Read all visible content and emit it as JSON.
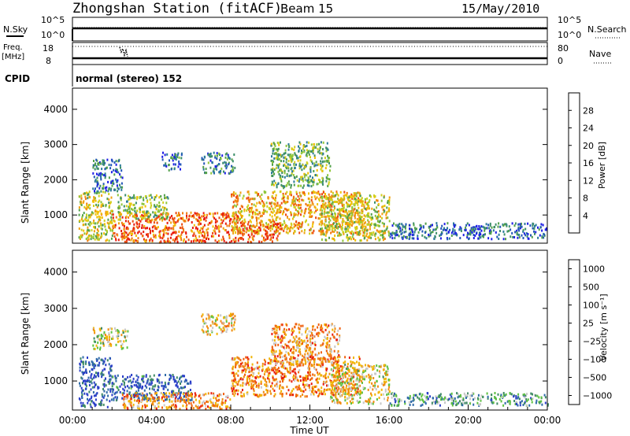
{
  "header": {
    "station": "Zhongshan Station (fitACF)",
    "beam": "Beam 15",
    "date": "15/May/2010"
  },
  "top_panels": {
    "nsky_label": "N.Sky",
    "nsky_ticks": [
      "10^5",
      "10^0"
    ],
    "nsearch_label": "N.Search",
    "nsearch_ticks": [
      "10^5",
      "10^0"
    ],
    "freq_label": "Freq.",
    "freq_unit": "[MHz]",
    "freq_ticks": [
      "18",
      "8"
    ],
    "nave_label": "Nave",
    "nave_ticks": [
      "80",
      "0"
    ],
    "cpid_label": "CPID",
    "cpid_text": "normal (stereo) 152"
  },
  "chart_data": [
    {
      "type": "heatmap",
      "name": "power",
      "ylabel": "Slant Range [km]",
      "xlabel": "",
      "yticks": [
        "1000",
        "2000",
        "3000",
        "4000"
      ],
      "ylim": [
        200,
        4600
      ],
      "xlim": [
        0,
        24
      ],
      "colorbar_label": "Power [dB]",
      "colorbar_ticks": [
        "4",
        "8",
        "12",
        "16",
        "20",
        "24",
        "28"
      ],
      "colorbar_colors": [
        "#1e1ee6",
        "#2256b8",
        "#2b7a9a",
        "#3d8f6a",
        "#52a04a",
        "#8fc63a",
        "#cfd01e",
        "#f0c000",
        "#f0a010",
        "#f07a10",
        "#ec4a10",
        "#e81a0c"
      ],
      "regions": [
        {
          "t0": 0.3,
          "t1": 2.0,
          "r0": 300,
          "r1": 1700,
          "level": 0.55
        },
        {
          "t0": 1.0,
          "t1": 2.5,
          "r0": 1700,
          "r1": 2600,
          "level": 0.2
        },
        {
          "t0": 2.0,
          "t1": 8.5,
          "r0": 250,
          "r1": 1100,
          "level": 0.85
        },
        {
          "t0": 2.2,
          "t1": 4.8,
          "r0": 900,
          "r1": 1600,
          "level": 0.45
        },
        {
          "t0": 4.5,
          "t1": 5.5,
          "r0": 2300,
          "r1": 2800,
          "level": 0.2
        },
        {
          "t0": 6.5,
          "t1": 8.2,
          "r0": 2200,
          "r1": 2800,
          "level": 0.25
        },
        {
          "t0": 8.0,
          "t1": 15.0,
          "r0": 500,
          "r1": 1700,
          "level": 0.68
        },
        {
          "t0": 8.5,
          "t1": 10.5,
          "r0": 250,
          "r1": 800,
          "level": 0.9
        },
        {
          "t0": 10.0,
          "t1": 13.0,
          "r0": 1800,
          "r1": 3100,
          "level": 0.4
        },
        {
          "t0": 12.5,
          "t1": 16.0,
          "r0": 300,
          "r1": 1600,
          "level": 0.55
        },
        {
          "t0": 16.0,
          "t1": 24.0,
          "r0": 350,
          "r1": 800,
          "level": 0.18
        }
      ]
    },
    {
      "type": "heatmap",
      "name": "velocity",
      "ylabel": "Slant Range [km]",
      "xlabel": "Time UT",
      "yticks": [
        "1000",
        "2000",
        "3000",
        "4000"
      ],
      "ylim": [
        200,
        4600
      ],
      "xlim": [
        0,
        24
      ],
      "xticks": [
        "00:00",
        "04:00",
        "08:00",
        "12:00",
        "16:00",
        "20:00",
        "00:00"
      ],
      "colorbar_label": "Velocity [m s⁻¹]",
      "colorbar_ticks": [
        "1000",
        "500",
        "100",
        "25",
        "−25",
        "−100",
        "−500",
        "−1000"
      ],
      "colorbar_colors": [
        "#2a3ec8",
        "#2f6aa8",
        "#3e8a64",
        "#5cc040",
        "#c8c8c8",
        "#f0b400",
        "#f08c10",
        "#f06010",
        "#e81a0c"
      ],
      "regions": [
        {
          "t0": 0.3,
          "t1": 2.0,
          "r0": 300,
          "r1": 1700,
          "level": 0.1
        },
        {
          "t0": 1.0,
          "t1": 2.8,
          "r0": 1900,
          "r1": 2500,
          "level": 0.5
        },
        {
          "t0": 2.0,
          "t1": 6.0,
          "r0": 500,
          "r1": 1200,
          "level": 0.12
        },
        {
          "t0": 2.5,
          "t1": 8.0,
          "r0": 250,
          "r1": 700,
          "level": 0.72
        },
        {
          "t0": 6.5,
          "t1": 8.2,
          "r0": 2300,
          "r1": 2900,
          "level": 0.6
        },
        {
          "t0": 8.0,
          "t1": 14.5,
          "r0": 600,
          "r1": 1700,
          "level": 0.75
        },
        {
          "t0": 10.0,
          "t1": 13.5,
          "r0": 1500,
          "r1": 2600,
          "level": 0.7
        },
        {
          "t0": 13.0,
          "t1": 16.0,
          "r0": 400,
          "r1": 1500,
          "level": 0.55
        },
        {
          "t0": 16.0,
          "t1": 24.0,
          "r0": 350,
          "r1": 700,
          "level": 0.3
        }
      ]
    }
  ]
}
